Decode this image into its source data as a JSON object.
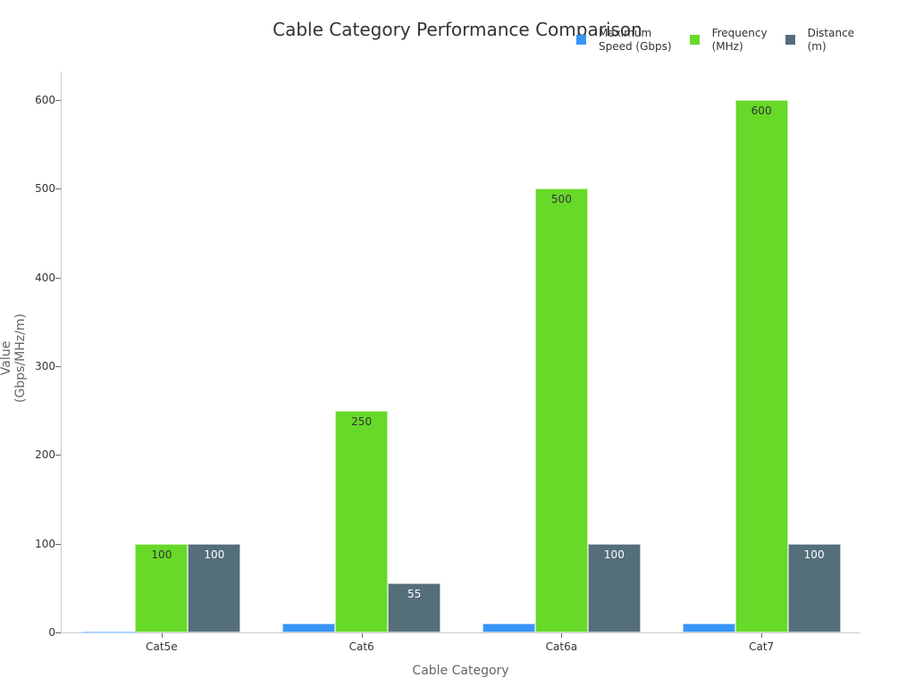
{
  "chart_data": {
    "type": "bar",
    "title": "Cable Category Performance Comparison",
    "xlabel": "Cable Category",
    "ylabel": "Value (Gbps/MHz/m)",
    "categories": [
      "Cat5e",
      "Cat6",
      "Cat6a",
      "Cat7"
    ],
    "series": [
      {
        "name": "Maximum Speed (Gbps)",
        "legend_lines": [
          "Maximum",
          "Speed (Gbps)"
        ],
        "color": "#3794f7",
        "values": [
          1,
          10,
          10,
          10
        ],
        "label_color": "#333333"
      },
      {
        "name": "Frequency (MHz)",
        "legend_lines": [
          "Frequency",
          "(MHz)"
        ],
        "color": "#67d928",
        "values": [
          100,
          250,
          500,
          600
        ],
        "label_color": "#333333"
      },
      {
        "name": "Distance (m)",
        "legend_lines": [
          "Distance",
          "(m)"
        ],
        "color": "#546e7a",
        "values": [
          100,
          55,
          100,
          100
        ],
        "label_color": "#ffffff"
      }
    ],
    "yticks": [
      0,
      100,
      200,
      300,
      400,
      500,
      600
    ],
    "ylim": [
      0,
      630
    ],
    "grid": false,
    "legend_position": "top-right"
  }
}
